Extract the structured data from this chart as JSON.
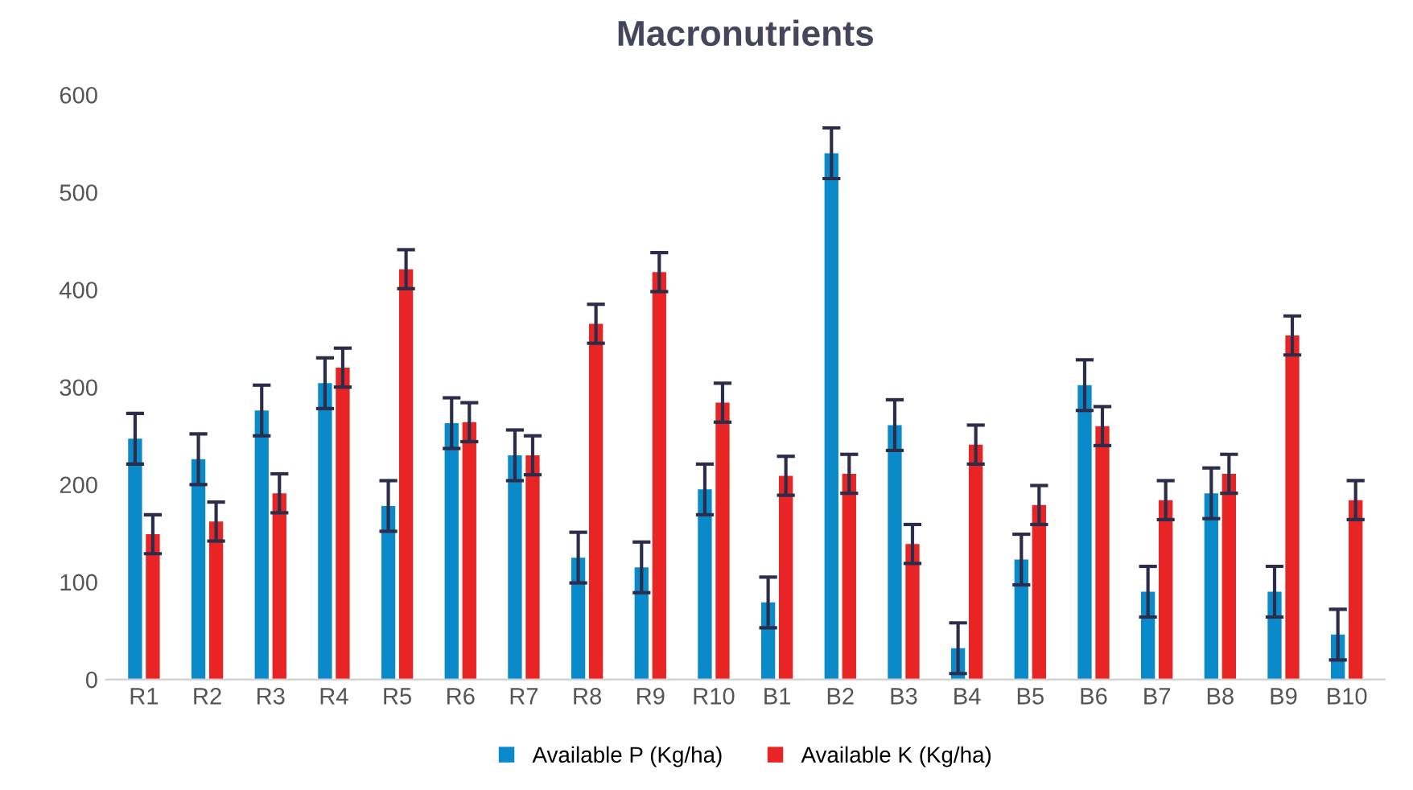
{
  "chart_data": {
    "type": "bar",
    "title": "Macronutrients",
    "categories": [
      "R1",
      "R2",
      "R3",
      "R4",
      "R5",
      "R6",
      "R7",
      "R8",
      "R9",
      "R10",
      "B1",
      "B2",
      "B3",
      "B4",
      "B5",
      "B6",
      "B7",
      "B8",
      "B9",
      "B10"
    ],
    "series": [
      {
        "name": "Available P (Kg/ha)",
        "color": "#0a8ac8",
        "values": [
          247,
          226,
          276,
          304,
          178,
          263,
          230,
          125,
          115,
          195,
          79,
          540,
          261,
          32,
          123,
          302,
          90,
          191,
          90,
          46
        ],
        "errors": [
          26,
          26,
          26,
          26,
          26,
          26,
          26,
          26,
          26,
          26,
          26,
          26,
          26,
          26,
          26,
          26,
          26,
          26,
          26,
          26
        ]
      },
      {
        "name": "Available K (Kg/ha)",
        "color": "#e82424",
        "values": [
          149,
          162,
          191,
          320,
          421,
          264,
          230,
          365,
          418,
          284,
          209,
          211,
          139,
          241,
          179,
          260,
          184,
          211,
          353,
          184
        ],
        "errors": [
          20,
          20,
          20,
          20,
          20,
          20,
          20,
          20,
          20,
          20,
          20,
          20,
          20,
          20,
          20,
          20,
          20,
          20,
          20,
          20
        ]
      }
    ],
    "ylim": [
      0,
      600
    ],
    "yticks": [
      0,
      100,
      200,
      300,
      400,
      500,
      600
    ],
    "grid": false,
    "legend": "bottom"
  }
}
